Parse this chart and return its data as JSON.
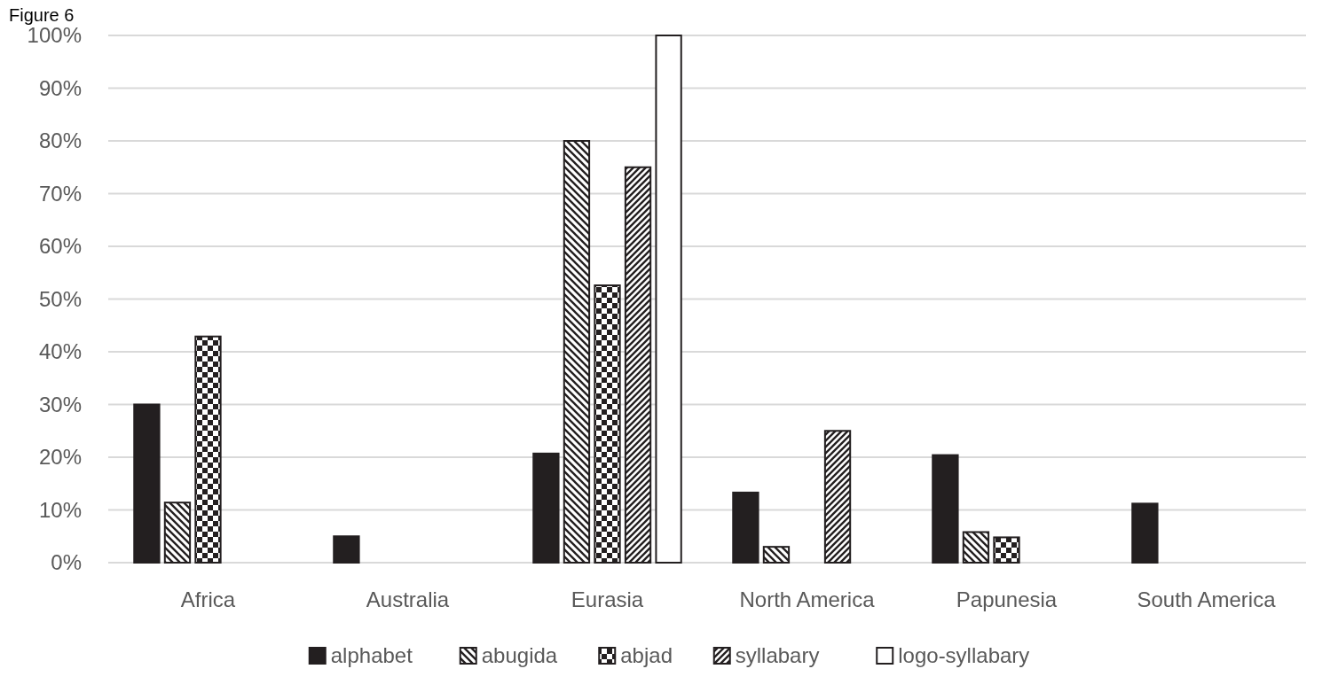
{
  "chart_data": {
    "type": "bar",
    "title": "Figure 6",
    "categories": [
      "Africa",
      "Australia",
      "Eurasia",
      "North America",
      "Papunesia",
      "South America"
    ],
    "series": [
      {
        "name": "alphabet",
        "color": "#231f20",
        "values": [
          30,
          5,
          20.7,
          13.3,
          20.4,
          11.2
        ]
      },
      {
        "name": "abugida",
        "color": "#231f20",
        "values": [
          11.4,
          null,
          80,
          3,
          5.8,
          null
        ]
      },
      {
        "name": "abjad",
        "color": "#231f20",
        "values": [
          42.9,
          null,
          52.6,
          null,
          4.8,
          null
        ]
      },
      {
        "name": "syllabary",
        "color": "#231f20",
        "values": [
          null,
          null,
          75,
          25,
          null,
          null
        ]
      },
      {
        "name": "logo-syllabary",
        "color": "#231f20",
        "values": [
          null,
          null,
          100,
          null,
          null,
          null
        ]
      }
    ],
    "ylim": [
      0,
      100
    ],
    "yticks": [
      {
        "value": 0,
        "label": "0%"
      },
      {
        "value": 10,
        "label": "10%"
      },
      {
        "value": 20,
        "label": "20%"
      },
      {
        "value": 30,
        "label": "30%"
      },
      {
        "value": 40,
        "label": "40%"
      },
      {
        "value": 50,
        "label": "50%"
      },
      {
        "value": 60,
        "label": "60%"
      },
      {
        "value": 70,
        "label": "70%"
      },
      {
        "value": 80,
        "label": "80%"
      },
      {
        "value": 90,
        "label": "90%"
      },
      {
        "value": 100,
        "label": "100%"
      }
    ],
    "grid": "y",
    "legend": "bottom"
  }
}
